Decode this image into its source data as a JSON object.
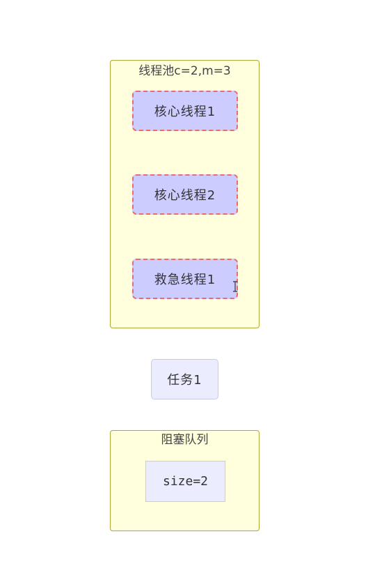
{
  "colors": {
    "cluster_fill": "#ffffde",
    "cluster_border": "#aaaa33",
    "thread_fill": "#ccccff",
    "thread_border": "#ea6b6b",
    "node_fill": "#ececff",
    "node_border": "#c9c9ee"
  },
  "thread_pool": {
    "label": "线程池c=2,m=3",
    "threads": [
      {
        "label": "核心线程1"
      },
      {
        "label": "核心线程2"
      },
      {
        "label": "救急线程1"
      }
    ]
  },
  "task": {
    "label": "任务1"
  },
  "blocking_queue": {
    "label": "阻塞队列",
    "size_label": "size=2"
  },
  "icons": {
    "cursor": "text-cursor-icon"
  }
}
